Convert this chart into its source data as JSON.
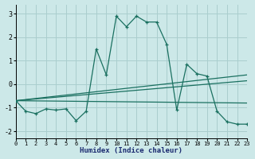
{
  "xlabel": "Humidex (Indice chaleur)",
  "bg_color": "#cce8e8",
  "grid_color": "#aacece",
  "line_color": "#1a7060",
  "xlim": [
    0,
    23
  ],
  "ylim": [
    -2.3,
    3.4
  ],
  "xticks": [
    0,
    1,
    2,
    3,
    4,
    5,
    6,
    7,
    8,
    9,
    10,
    11,
    12,
    13,
    14,
    15,
    16,
    17,
    18,
    19,
    20,
    21,
    22,
    23
  ],
  "yticks": [
    -2,
    -1,
    0,
    1,
    2,
    3
  ],
  "line_main": {
    "x": [
      0,
      1,
      2,
      3,
      4,
      5,
      6,
      7,
      8,
      9,
      10,
      11,
      12,
      13,
      14,
      15,
      16,
      17,
      18,
      19,
      20,
      21,
      22,
      23
    ],
    "y": [
      -0.7,
      -1.15,
      -1.25,
      -1.05,
      -1.1,
      -1.05,
      -1.55,
      -1.15,
      1.5,
      0.4,
      2.9,
      2.45,
      2.9,
      2.65,
      2.65,
      1.7,
      -1.1,
      0.85,
      0.45,
      0.35,
      -1.15,
      -1.6,
      -1.7,
      -1.7
    ]
  },
  "line_a": {
    "x": [
      0,
      23
    ],
    "y": [
      -0.7,
      0.4
    ]
  },
  "line_b": {
    "x": [
      0,
      23
    ],
    "y": [
      -0.7,
      0.15
    ]
  },
  "line_c": {
    "x": [
      0,
      23
    ],
    "y": [
      -0.7,
      -0.8
    ]
  },
  "xlabel_color": "#1a2a70",
  "xlabel_fontsize": 6.5
}
